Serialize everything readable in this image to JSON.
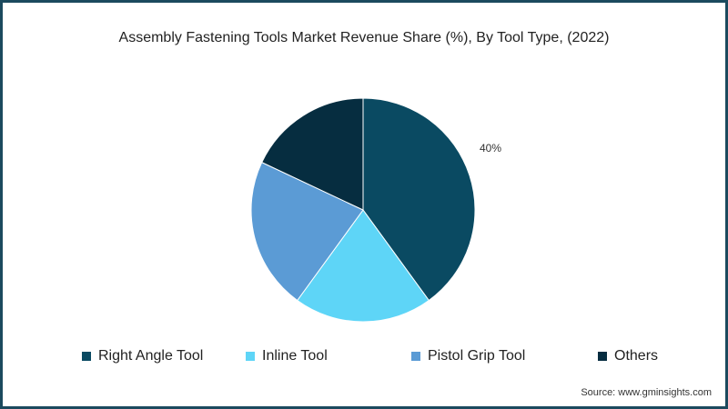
{
  "title": "Assembly Fastening Tools Market Revenue Share (%), By Tool Type, (2022)",
  "source": "Source: www.gminsights.com",
  "data_label": "40%",
  "legend": [
    {
      "label": "Right Angle Tool",
      "color": "#0a4a62"
    },
    {
      "label": "Inline Tool",
      "color": "#5ed5f7"
    },
    {
      "label": "Pistol Grip Tool",
      "color": "#5b9bd5"
    },
    {
      "label": "Others",
      "color": "#062d40"
    }
  ],
  "chart_data": {
    "type": "pie",
    "title": "Assembly Fastening Tools Market Revenue Share (%), By Tool Type, (2022)",
    "categories": [
      "Right Angle Tool",
      "Inline Tool",
      "Pistol Grip Tool",
      "Others"
    ],
    "values": [
      40,
      20,
      22,
      18
    ],
    "colors": [
      "#0a4a62",
      "#5ed5f7",
      "#5b9bd5",
      "#062d40"
    ],
    "data_labels": {
      "Right Angle Tool": "40%"
    },
    "legend_position": "bottom",
    "start_angle": "12 o'clock, clockwise"
  }
}
